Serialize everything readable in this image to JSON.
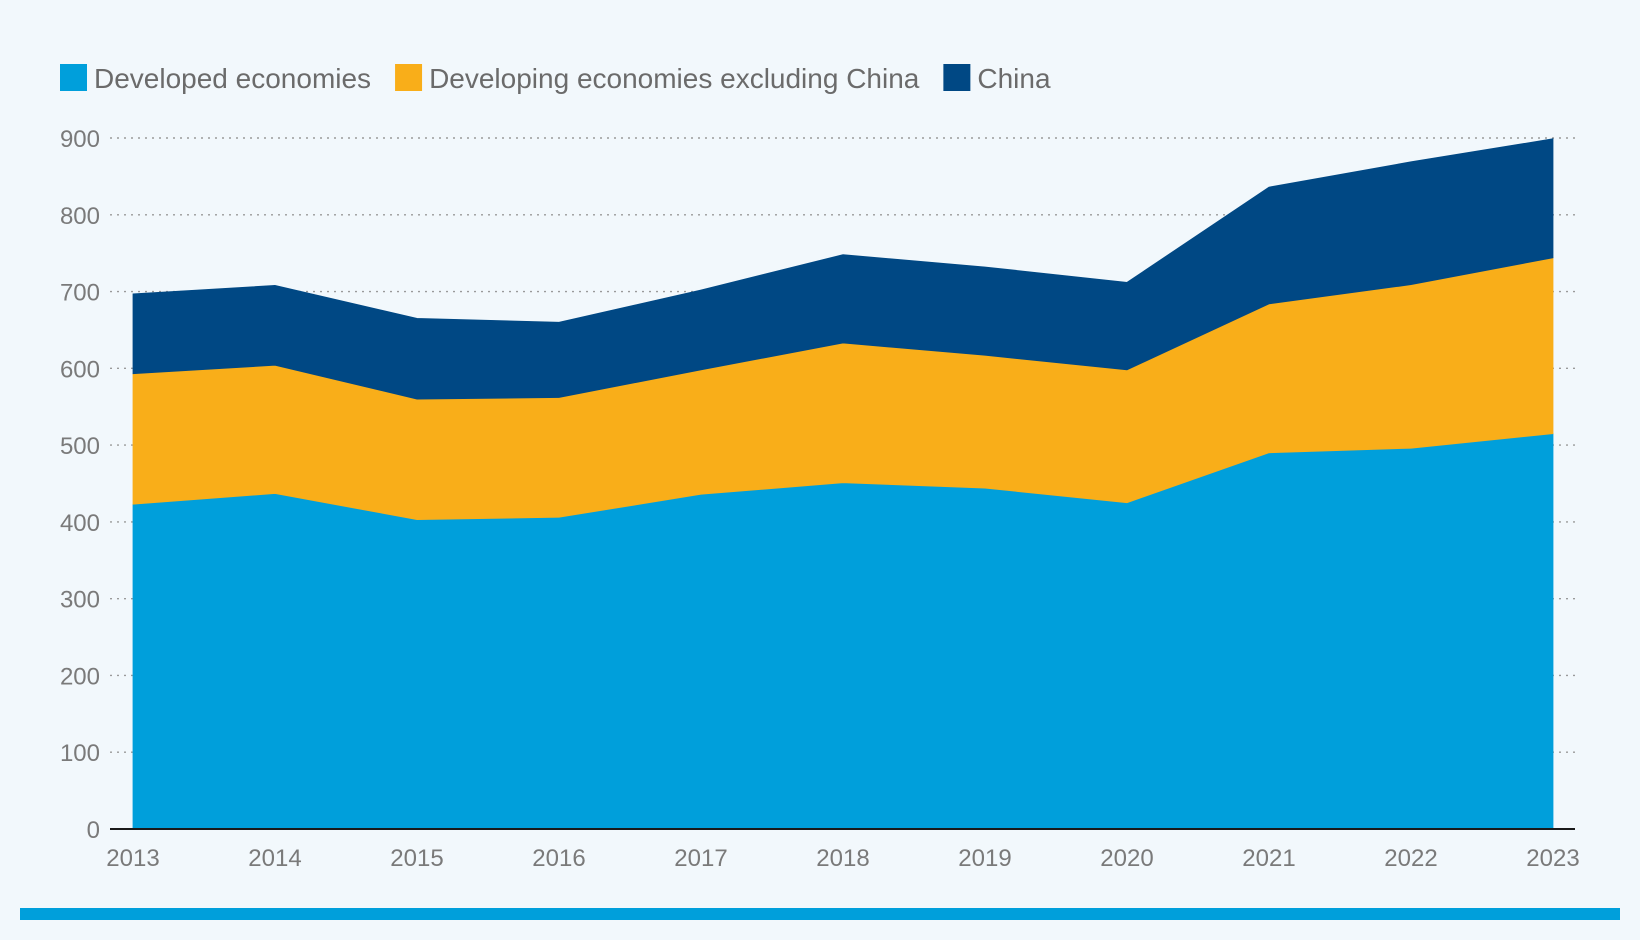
{
  "colors": {
    "developed": "#009fdb",
    "developing_ex_china": "#f9ae19",
    "china": "#004884",
    "background": "#f2f8fc",
    "bottom_bar": "#009fdb"
  },
  "chart_data": {
    "type": "area",
    "stacked": true,
    "title": "",
    "xlabel": "",
    "ylabel": "",
    "x": [
      "2013",
      "2014",
      "2015",
      "2016",
      "2017",
      "2018",
      "2019",
      "2020",
      "2021",
      "2022",
      "2023"
    ],
    "ylim": [
      0,
      900
    ],
    "yticks": [
      "0",
      "100",
      "200",
      "300",
      "400",
      "500",
      "600",
      "700",
      "800",
      "900"
    ],
    "grid": true,
    "legend_position": "top-left",
    "series": [
      {
        "name": "Developed economies",
        "color_key": "developed",
        "values": [
          423,
          437,
          403,
          406,
          436,
          451,
          444,
          425,
          490,
          496,
          515
        ]
      },
      {
        "name": "Developing economies excluding China",
        "color_key": "developing_ex_china",
        "values": [
          170,
          167,
          157,
          156,
          162,
          182,
          173,
          173,
          194,
          213,
          229
        ]
      },
      {
        "name": "China",
        "color_key": "china",
        "values": [
          104,
          104,
          105,
          98,
          104,
          115,
          115,
          114,
          152,
          160,
          155
        ]
      }
    ]
  }
}
